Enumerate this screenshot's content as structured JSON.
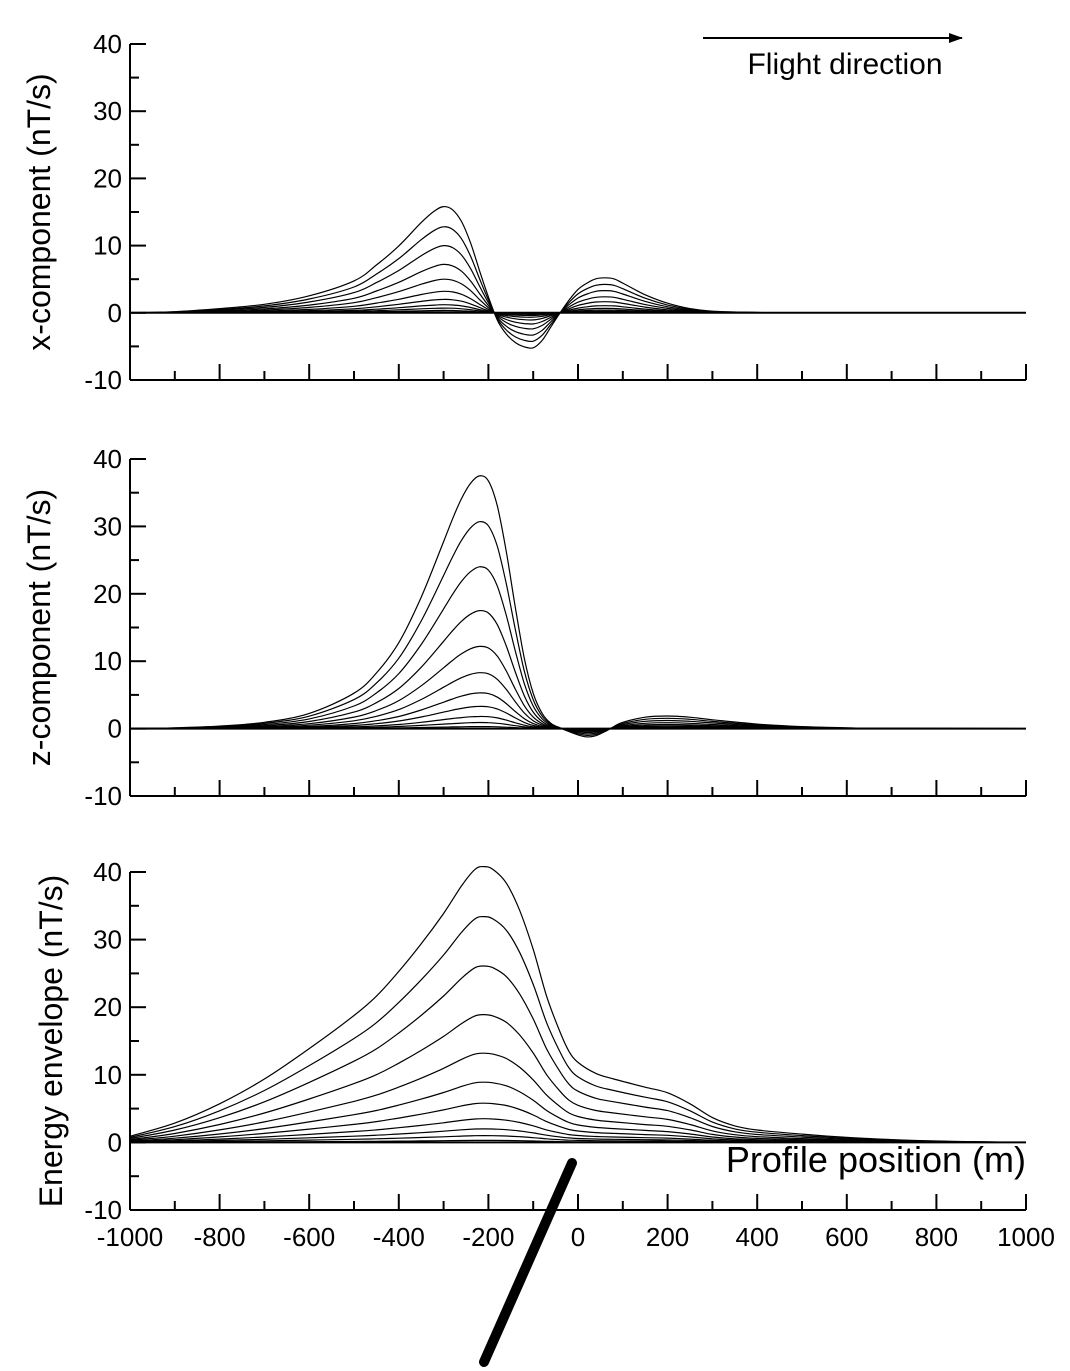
{
  "annotations": {
    "flight_direction": "Flight direction"
  },
  "chart_data": [
    {
      "type": "line",
      "ylabel": "x-component (nT/s)",
      "xlabel": "",
      "xlim": [
        -1000,
        1000
      ],
      "ylim": [
        -10,
        40
      ],
      "ytick_labels": [
        "-10",
        "0",
        "10",
        "20",
        "30",
        "40"
      ],
      "xtick_labels": [],
      "curves": {
        "count": 11,
        "peak_amplitudes": [
          15.8,
          12.8,
          10.0,
          7.2,
          5.0,
          3.2,
          2.0,
          1.2,
          0.7,
          0.35,
          0.15
        ],
        "shape": [
          [
            -1000,
            0.0
          ],
          [
            -900,
            0.01
          ],
          [
            -800,
            0.04
          ],
          [
            -700,
            0.08
          ],
          [
            -600,
            0.16
          ],
          [
            -500,
            0.3
          ],
          [
            -450,
            0.45
          ],
          [
            -400,
            0.63
          ],
          [
            -350,
            0.85
          ],
          [
            -320,
            0.96
          ],
          [
            -300,
            1.0
          ],
          [
            -280,
            0.97
          ],
          [
            -260,
            0.86
          ],
          [
            -240,
            0.66
          ],
          [
            -220,
            0.4
          ],
          [
            -200,
            0.15
          ],
          [
            -180,
            -0.07
          ],
          [
            -160,
            -0.2
          ],
          [
            -140,
            -0.28
          ],
          [
            -120,
            -0.32
          ],
          [
            -100,
            -0.33
          ],
          [
            -80,
            -0.26
          ],
          [
            -60,
            -0.13
          ],
          [
            -40,
            0.0
          ],
          [
            -20,
            0.12
          ],
          [
            0,
            0.22
          ],
          [
            20,
            0.28
          ],
          [
            40,
            0.32
          ],
          [
            60,
            0.33
          ],
          [
            80,
            0.32
          ],
          [
            100,
            0.28
          ],
          [
            150,
            0.17
          ],
          [
            200,
            0.09
          ],
          [
            250,
            0.04
          ],
          [
            300,
            0.015
          ],
          [
            400,
            0.003
          ],
          [
            500,
            0.0
          ],
          [
            1000,
            0.0
          ]
        ]
      }
    },
    {
      "type": "line",
      "ylabel": "z-component (nT/s)",
      "xlabel": "",
      "xlim": [
        -1000,
        1000
      ],
      "ylim": [
        -10,
        40
      ],
      "ytick_labels": [
        "-10",
        "0",
        "10",
        "20",
        "30",
        "40"
      ],
      "xtick_labels": [],
      "curves": {
        "count": 11,
        "peak_amplitudes": [
          37.5,
          30.7,
          24.0,
          17.5,
          12.2,
          8.3,
          5.3,
          3.3,
          1.8,
          0.9,
          0.3
        ],
        "shape": [
          [
            -1000,
            0.0
          ],
          [
            -900,
            0.003
          ],
          [
            -800,
            0.01
          ],
          [
            -700,
            0.025
          ],
          [
            -600,
            0.06
          ],
          [
            -500,
            0.14
          ],
          [
            -450,
            0.22
          ],
          [
            -400,
            0.34
          ],
          [
            -350,
            0.52
          ],
          [
            -300,
            0.74
          ],
          [
            -280,
            0.83
          ],
          [
            -260,
            0.91
          ],
          [
            -240,
            0.97
          ],
          [
            -220,
            1.0
          ],
          [
            -200,
            0.98
          ],
          [
            -180,
            0.88
          ],
          [
            -160,
            0.7
          ],
          [
            -140,
            0.48
          ],
          [
            -120,
            0.28
          ],
          [
            -100,
            0.14
          ],
          [
            -80,
            0.06
          ],
          [
            -60,
            0.02
          ],
          [
            -40,
            0.003
          ],
          [
            -20,
            -0.012
          ],
          [
            0,
            -0.025
          ],
          [
            20,
            -0.033
          ],
          [
            40,
            -0.028
          ],
          [
            60,
            -0.012
          ],
          [
            80,
            0.008
          ],
          [
            100,
            0.025
          ],
          [
            150,
            0.045
          ],
          [
            200,
            0.05
          ],
          [
            250,
            0.045
          ],
          [
            300,
            0.035
          ],
          [
            400,
            0.018
          ],
          [
            500,
            0.008
          ],
          [
            600,
            0.003
          ],
          [
            700,
            0.001
          ],
          [
            1000,
            0.0
          ]
        ]
      }
    },
    {
      "type": "line",
      "ylabel": "Energy envelope (nT/s)",
      "xlabel": "Profile position (m)",
      "xlim": [
        -1000,
        1000
      ],
      "ylim": [
        -10,
        40
      ],
      "ytick_labels": [
        "-10",
        "0",
        "10",
        "20",
        "30",
        "40"
      ],
      "xtick_labels": [
        "-1000",
        "-800",
        "-600",
        "-400",
        "-200",
        "0",
        "200",
        "400",
        "600",
        "800",
        "1000"
      ],
      "curves": {
        "count": 11,
        "peak_amplitudes": [
          40.8,
          33.4,
          26.1,
          18.9,
          13.2,
          8.9,
          5.8,
          3.5,
          2.0,
          1.0,
          0.3
        ],
        "shape": [
          [
            -1000,
            0.022
          ],
          [
            -900,
            0.07
          ],
          [
            -800,
            0.14
          ],
          [
            -700,
            0.23
          ],
          [
            -600,
            0.34
          ],
          [
            -500,
            0.46
          ],
          [
            -450,
            0.53
          ],
          [
            -400,
            0.62
          ],
          [
            -350,
            0.72
          ],
          [
            -300,
            0.83
          ],
          [
            -260,
            0.93
          ],
          [
            -230,
            0.99
          ],
          [
            -210,
            1.0
          ],
          [
            -190,
            0.99
          ],
          [
            -160,
            0.94
          ],
          [
            -130,
            0.84
          ],
          [
            -100,
            0.7
          ],
          [
            -70,
            0.53
          ],
          [
            -40,
            0.4
          ],
          [
            -20,
            0.33
          ],
          [
            0,
            0.29
          ],
          [
            40,
            0.25
          ],
          [
            80,
            0.23
          ],
          [
            150,
            0.2
          ],
          [
            200,
            0.18
          ],
          [
            250,
            0.14
          ],
          [
            300,
            0.09
          ],
          [
            350,
            0.06
          ],
          [
            400,
            0.045
          ],
          [
            500,
            0.03
          ],
          [
            600,
            0.018
          ],
          [
            700,
            0.01
          ],
          [
            800,
            0.005
          ],
          [
            900,
            0.002
          ],
          [
            1000,
            0.0
          ]
        ]
      }
    }
  ]
}
